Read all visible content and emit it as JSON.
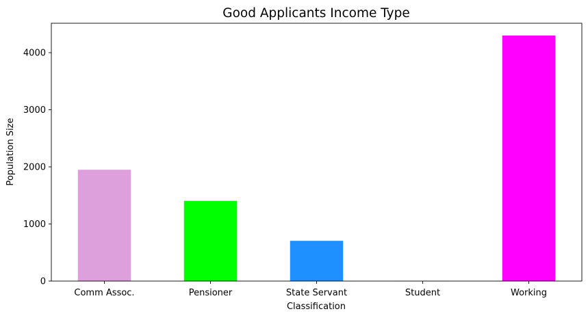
{
  "chart_data": {
    "type": "bar",
    "title": "Good Applicants Income Type",
    "xlabel": "Classification",
    "ylabel": "Population Size",
    "categories": [
      "Comm Assoc.",
      "Pensioner",
      "State Servant",
      "Student",
      "Working"
    ],
    "values": [
      1950,
      1405,
      705,
      2,
      4300
    ],
    "colors": [
      "#dda0dd",
      "#00ff00",
      "#1e90ff",
      "#8b0000",
      "#ff00ff"
    ],
    "yticks": [
      0,
      1000,
      2000,
      3000,
      4000
    ],
    "ylim": [
      0,
      4515
    ],
    "grid": false,
    "legend": "none"
  }
}
